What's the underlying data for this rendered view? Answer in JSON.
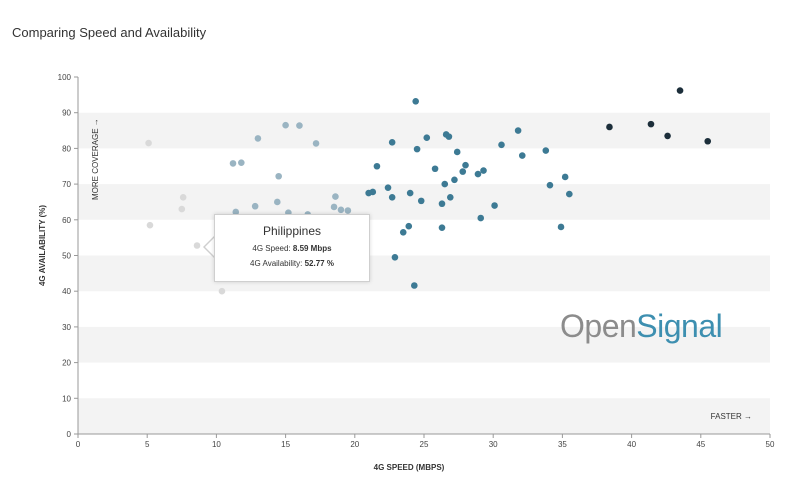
{
  "title": "Comparing Speed and Availability",
  "logo": {
    "part1": "Open",
    "part2": "Signal"
  },
  "tooltip": {
    "country": "Philippines",
    "speed_label": "4G Speed: ",
    "speed_value": "8.59 Mbps",
    "availability_label": "4G Availability: ",
    "availability_value": "52.77 %"
  },
  "chart_data": {
    "type": "scatter",
    "title": "Comparing Speed and Availability",
    "xlabel": "4G SPEED (MBPS)",
    "ylabel": "4G AVAILABILITY (%)",
    "xlim": [
      0,
      50
    ],
    "ylim": [
      0,
      100
    ],
    "xticks": [
      0,
      5,
      10,
      15,
      20,
      25,
      30,
      35,
      40,
      45,
      50
    ],
    "yticks": [
      0,
      10,
      20,
      30,
      40,
      50,
      60,
      70,
      80,
      90,
      100
    ],
    "grid": "alternating horizontal bands",
    "annotations": {
      "more_coverage": "MORE COVERAGE →",
      "faster": "FASTER →"
    },
    "colors": [
      "#d9d9d9",
      "#9ab4c2",
      "#3d7a94",
      "#1c2e3a"
    ],
    "points": [
      {
        "x": 5.1,
        "y": 81.5,
        "c": 0
      },
      {
        "x": 5.2,
        "y": 58.5,
        "c": 0
      },
      {
        "x": 7.6,
        "y": 66.3,
        "c": 0
      },
      {
        "x": 7.5,
        "y": 63.0,
        "c": 0
      },
      {
        "x": 8.6,
        "y": 52.8,
        "c": 0
      },
      {
        "x": 10.4,
        "y": 40.0,
        "c": 0
      },
      {
        "x": 11.2,
        "y": 75.8,
        "c": 1
      },
      {
        "x": 11.8,
        "y": 76.0,
        "c": 1
      },
      {
        "x": 11.4,
        "y": 62.2,
        "c": 1
      },
      {
        "x": 12.8,
        "y": 63.8,
        "c": 1
      },
      {
        "x": 13.0,
        "y": 82.8,
        "c": 1
      },
      {
        "x": 14.5,
        "y": 72.2,
        "c": 1
      },
      {
        "x": 14.4,
        "y": 65.0,
        "c": 1
      },
      {
        "x": 15.0,
        "y": 86.5,
        "c": 1
      },
      {
        "x": 15.2,
        "y": 62.0,
        "c": 1
      },
      {
        "x": 16.0,
        "y": 86.4,
        "c": 1
      },
      {
        "x": 16.6,
        "y": 61.5,
        "c": 1
      },
      {
        "x": 17.2,
        "y": 81.4,
        "c": 1
      },
      {
        "x": 18.5,
        "y": 63.6,
        "c": 1
      },
      {
        "x": 18.6,
        "y": 66.5,
        "c": 1
      },
      {
        "x": 19.0,
        "y": 62.8,
        "c": 1
      },
      {
        "x": 19.5,
        "y": 62.6,
        "c": 1
      },
      {
        "x": 21.0,
        "y": 67.5,
        "c": 2
      },
      {
        "x": 21.3,
        "y": 67.8,
        "c": 2
      },
      {
        "x": 21.6,
        "y": 75.0,
        "c": 2
      },
      {
        "x": 22.4,
        "y": 69.0,
        "c": 2
      },
      {
        "x": 22.7,
        "y": 81.7,
        "c": 2
      },
      {
        "x": 22.7,
        "y": 66.3,
        "c": 2
      },
      {
        "x": 22.9,
        "y": 49.5,
        "c": 2
      },
      {
        "x": 23.5,
        "y": 56.5,
        "c": 2
      },
      {
        "x": 23.9,
        "y": 58.2,
        "c": 2
      },
      {
        "x": 24.0,
        "y": 67.5,
        "c": 2
      },
      {
        "x": 24.3,
        "y": 41.6,
        "c": 2
      },
      {
        "x": 24.4,
        "y": 93.2,
        "c": 2
      },
      {
        "x": 24.5,
        "y": 79.8,
        "c": 2
      },
      {
        "x": 24.8,
        "y": 65.3,
        "c": 2
      },
      {
        "x": 25.2,
        "y": 83.0,
        "c": 2
      },
      {
        "x": 25.8,
        "y": 74.3,
        "c": 2
      },
      {
        "x": 26.3,
        "y": 64.5,
        "c": 2
      },
      {
        "x": 26.3,
        "y": 57.8,
        "c": 2
      },
      {
        "x": 26.5,
        "y": 70.0,
        "c": 2
      },
      {
        "x": 26.6,
        "y": 83.9,
        "c": 2
      },
      {
        "x": 26.8,
        "y": 83.3,
        "c": 2
      },
      {
        "x": 26.9,
        "y": 66.3,
        "c": 2
      },
      {
        "x": 27.2,
        "y": 71.2,
        "c": 2
      },
      {
        "x": 27.4,
        "y": 79.0,
        "c": 2
      },
      {
        "x": 27.8,
        "y": 73.5,
        "c": 2
      },
      {
        "x": 28.0,
        "y": 75.3,
        "c": 2
      },
      {
        "x": 28.9,
        "y": 72.8,
        "c": 2
      },
      {
        "x": 29.1,
        "y": 60.5,
        "c": 2
      },
      {
        "x": 29.3,
        "y": 73.8,
        "c": 2
      },
      {
        "x": 30.1,
        "y": 64.0,
        "c": 2
      },
      {
        "x": 30.6,
        "y": 81.0,
        "c": 2
      },
      {
        "x": 31.8,
        "y": 85.0,
        "c": 2
      },
      {
        "x": 32.1,
        "y": 78.0,
        "c": 2
      },
      {
        "x": 33.8,
        "y": 79.4,
        "c": 2
      },
      {
        "x": 34.1,
        "y": 69.7,
        "c": 2
      },
      {
        "x": 34.9,
        "y": 58.0,
        "c": 2
      },
      {
        "x": 35.2,
        "y": 72.0,
        "c": 2
      },
      {
        "x": 35.5,
        "y": 67.2,
        "c": 2
      },
      {
        "x": 38.4,
        "y": 86.0,
        "c": 3
      },
      {
        "x": 41.4,
        "y": 86.8,
        "c": 3
      },
      {
        "x": 42.6,
        "y": 83.5,
        "c": 3
      },
      {
        "x": 43.5,
        "y": 96.2,
        "c": 3
      },
      {
        "x": 45.5,
        "y": 82.0,
        "c": 3
      }
    ]
  }
}
